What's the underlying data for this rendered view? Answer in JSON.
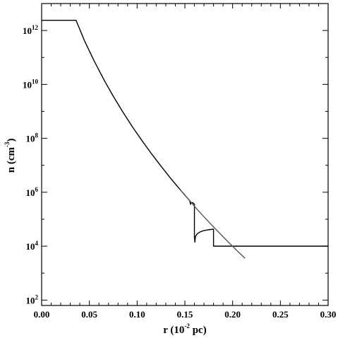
{
  "chart_data": {
    "type": "line",
    "title": "",
    "xlabel": "r (10-2 pc)",
    "xlabel_parts": {
      "main": "r (10",
      "exp": "-2",
      "tail": " pc)"
    },
    "ylabel": "n (cm-3)",
    "ylabel_parts": {
      "main": "n (cm",
      "exp": "-3",
      "tail": ")"
    },
    "xlim": [
      0.0,
      0.3
    ],
    "ylim_log10": [
      1.8,
      13.0
    ],
    "y_scale": "log",
    "grid": false,
    "legend": "none",
    "x_ticks": [
      {
        "value": 0.0,
        "label": "0.00"
      },
      {
        "value": 0.05,
        "label": "0.05"
      },
      {
        "value": 0.1,
        "label": "0.10"
      },
      {
        "value": 0.15,
        "label": "0.15"
      },
      {
        "value": 0.2,
        "label": "0.20"
      },
      {
        "value": 0.25,
        "label": "0.25"
      },
      {
        "value": 0.3,
        "label": "0.30"
      }
    ],
    "y_ticks": [
      {
        "exp": 2,
        "base": "10",
        "sup": "2"
      },
      {
        "exp": 4,
        "base": "10",
        "sup": "4"
      },
      {
        "exp": 6,
        "base": "10",
        "sup": "6"
      },
      {
        "exp": 8,
        "base": "10",
        "sup": "8"
      },
      {
        "exp": 10,
        "base": "10",
        "sup": "10"
      },
      {
        "exp": 12,
        "base": "10",
        "sup": "12"
      }
    ],
    "series": [
      {
        "color": "#000000",
        "x": [
          0.0,
          0.036,
          0.036,
          0.045,
          0.055,
          0.065,
          0.075,
          0.085,
          0.095,
          0.105,
          0.115,
          0.125,
          0.135,
          0.145,
          0.15,
          0.155,
          0.156,
          0.1562,
          0.1575,
          0.1588,
          0.16,
          0.16,
          0.1605,
          0.161,
          0.163,
          0.166,
          0.17,
          0.175,
          0.18,
          0.18,
          0.19,
          0.22,
          0.26,
          0.3
        ],
        "log10_y": [
          12.38,
          12.38,
          12.38,
          11.61,
          10.87,
          10.19,
          9.56,
          8.98,
          8.43,
          7.92,
          7.43,
          6.97,
          6.52,
          6.1,
          5.89,
          5.69,
          5.55,
          5.6,
          5.62,
          5.6,
          5.55,
          4.34,
          4.15,
          4.36,
          4.46,
          4.53,
          4.58,
          4.61,
          4.63,
          4.0,
          4.0,
          4.0,
          4.0,
          4.0
        ]
      },
      {
        "color": "#555555",
        "x": [
          0.145,
          0.155,
          0.16,
          0.165,
          0.175,
          0.185,
          0.195,
          0.205,
          0.213
        ],
        "log10_y": [
          6.1,
          5.69,
          5.48,
          5.28,
          4.9,
          4.53,
          4.17,
          3.82,
          3.55
        ]
      }
    ]
  }
}
